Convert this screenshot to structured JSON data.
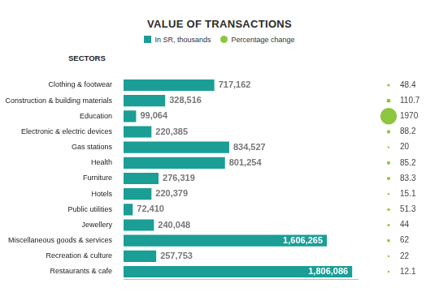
{
  "chart_data": {
    "type": "bar",
    "title": "VALUE OF TRANSACTIONS",
    "ylabel": "SECTORS",
    "orientation": "horizontal",
    "categories": [
      "Clothing & footwear",
      "Construction & building materials",
      "Education",
      "Electronic & electric devices",
      "Gas stations",
      "Health",
      "Furniture",
      "Hotels",
      "Public utilities",
      "Jewellery",
      "Miscellaneous goods & services",
      "Recreation & culture",
      "Restaurants & cafe"
    ],
    "series": [
      {
        "name": "In SR, thousands",
        "color": "#1a9e96",
        "values": [
          717162,
          328516,
          99064,
          220385,
          834527,
          801254,
          276319,
          220379,
          72410,
          240048,
          1606265,
          257753,
          1806086
        ],
        "value_labels": [
          "717,162",
          "328,516",
          "99,064",
          "220,385",
          "834,527",
          "801,254",
          "276,319",
          "220,379",
          "72,410",
          "240,048",
          "1,606,265",
          "257,753",
          "1,806,086"
        ]
      },
      {
        "name": "Percentage change",
        "color": "#8dc63f",
        "type": "bubble",
        "values": [
          48.4,
          110.7,
          1970,
          88.2,
          20,
          85.2,
          83.3,
          15.1,
          51.3,
          44,
          62,
          22,
          12.1
        ]
      }
    ],
    "xlim": [
      0,
      1850000
    ],
    "data_labels": true,
    "tick_labels": "y",
    "grid": false,
    "legend": "top"
  }
}
